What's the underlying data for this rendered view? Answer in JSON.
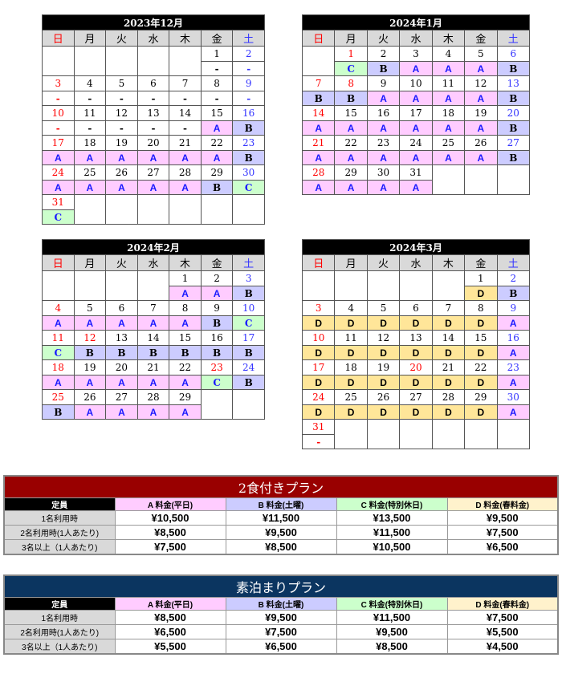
{
  "weekday_labels": [
    "日",
    "月",
    "火",
    "水",
    "木",
    "金",
    "土"
  ],
  "rate_colors": {
    "A": "#ffccff",
    "B": "#ccccff",
    "C": "#ccffcc",
    "D": "#ffe699",
    "-": "#ffffff"
  },
  "date_colors": {
    "sunday": "#ff0000",
    "saturday": "#3333ff",
    "weekday": "#000000",
    "holiday": "#ff0000"
  },
  "calendars": [
    {
      "title": "2023年12月",
      "holidays": [],
      "weeks": [
        [
          null,
          null,
          null,
          null,
          null,
          [
            1,
            "-"
          ],
          [
            2,
            "-"
          ]
        ],
        [
          [
            3,
            "-"
          ],
          [
            4,
            "-"
          ],
          [
            5,
            "-"
          ],
          [
            6,
            "-"
          ],
          [
            7,
            "-"
          ],
          [
            8,
            "-"
          ],
          [
            9,
            "-"
          ]
        ],
        [
          [
            10,
            "-"
          ],
          [
            11,
            "-"
          ],
          [
            12,
            "-"
          ],
          [
            13,
            "-"
          ],
          [
            14,
            "-"
          ],
          [
            15,
            "A"
          ],
          [
            16,
            "B"
          ]
        ],
        [
          [
            17,
            "A"
          ],
          [
            18,
            "A"
          ],
          [
            19,
            "A"
          ],
          [
            20,
            "A"
          ],
          [
            21,
            "A"
          ],
          [
            22,
            "A"
          ],
          [
            23,
            "B"
          ]
        ],
        [
          [
            24,
            "A"
          ],
          [
            25,
            "A"
          ],
          [
            26,
            "A"
          ],
          [
            27,
            "A"
          ],
          [
            28,
            "A"
          ],
          [
            29,
            "B"
          ],
          [
            30,
            "C"
          ]
        ],
        [
          [
            31,
            "C"
          ],
          null,
          null,
          null,
          null,
          null,
          null
        ]
      ]
    },
    {
      "title": "2024年1月",
      "holidays": [
        1,
        8
      ],
      "weeks": [
        [
          null,
          [
            1,
            "C"
          ],
          [
            2,
            "B"
          ],
          [
            3,
            "A"
          ],
          [
            4,
            "A"
          ],
          [
            5,
            "A"
          ],
          [
            6,
            "B"
          ]
        ],
        [
          [
            7,
            "B"
          ],
          [
            8,
            "B"
          ],
          [
            9,
            "A"
          ],
          [
            10,
            "A"
          ],
          [
            11,
            "A"
          ],
          [
            12,
            "A"
          ],
          [
            13,
            "B"
          ]
        ],
        [
          [
            14,
            "A"
          ],
          [
            15,
            "A"
          ],
          [
            16,
            "A"
          ],
          [
            17,
            "A"
          ],
          [
            18,
            "A"
          ],
          [
            19,
            "A"
          ],
          [
            20,
            "B"
          ]
        ],
        [
          [
            21,
            "A"
          ],
          [
            22,
            "A"
          ],
          [
            23,
            "A"
          ],
          [
            24,
            "A"
          ],
          [
            25,
            "A"
          ],
          [
            26,
            "A"
          ],
          [
            27,
            "B"
          ]
        ],
        [
          [
            28,
            "A"
          ],
          [
            29,
            "A"
          ],
          [
            30,
            "A"
          ],
          [
            31,
            "A"
          ],
          null,
          null,
          null
        ]
      ]
    },
    {
      "title": "2024年2月",
      "holidays": [
        12,
        23
      ],
      "weeks": [
        [
          null,
          null,
          null,
          null,
          [
            1,
            "A"
          ],
          [
            2,
            "A"
          ],
          [
            3,
            "B"
          ]
        ],
        [
          [
            4,
            "A"
          ],
          [
            5,
            "A"
          ],
          [
            6,
            "A"
          ],
          [
            7,
            "A"
          ],
          [
            8,
            "A"
          ],
          [
            9,
            "B"
          ],
          [
            10,
            "C"
          ]
        ],
        [
          [
            11,
            "C"
          ],
          [
            12,
            "B"
          ],
          [
            13,
            "B"
          ],
          [
            14,
            "B"
          ],
          [
            15,
            "B"
          ],
          [
            16,
            "B"
          ],
          [
            17,
            "B"
          ]
        ],
        [
          [
            18,
            "A"
          ],
          [
            19,
            "A"
          ],
          [
            20,
            "A"
          ],
          [
            21,
            "A"
          ],
          [
            22,
            "A"
          ],
          [
            23,
            "C"
          ],
          [
            24,
            "B"
          ]
        ],
        [
          [
            25,
            "B"
          ],
          [
            26,
            "A"
          ],
          [
            27,
            "A"
          ],
          [
            28,
            "A"
          ],
          [
            29,
            "A"
          ],
          null,
          null
        ]
      ]
    },
    {
      "title": "2024年3月",
      "holidays": [
        20
      ],
      "weeks": [
        [
          null,
          null,
          null,
          null,
          null,
          [
            1,
            "D"
          ],
          [
            2,
            "B"
          ]
        ],
        [
          [
            3,
            "D"
          ],
          [
            4,
            "D"
          ],
          [
            5,
            "D"
          ],
          [
            6,
            "D"
          ],
          [
            7,
            "D"
          ],
          [
            8,
            "D"
          ],
          [
            9,
            "A"
          ]
        ],
        [
          [
            10,
            "D"
          ],
          [
            11,
            "D"
          ],
          [
            12,
            "D"
          ],
          [
            13,
            "D"
          ],
          [
            14,
            "D"
          ],
          [
            15,
            "D"
          ],
          [
            16,
            "A"
          ]
        ],
        [
          [
            17,
            "D"
          ],
          [
            18,
            "D"
          ],
          [
            19,
            "D"
          ],
          [
            20,
            "D"
          ],
          [
            21,
            "D"
          ],
          [
            22,
            "D"
          ],
          [
            23,
            "A"
          ]
        ],
        [
          [
            24,
            "D"
          ],
          [
            25,
            "D"
          ],
          [
            26,
            "D"
          ],
          [
            27,
            "D"
          ],
          [
            28,
            "D"
          ],
          [
            29,
            "D"
          ],
          [
            30,
            "A"
          ]
        ],
        [
          [
            31,
            "-"
          ],
          null,
          null,
          null,
          null,
          null,
          null
        ]
      ]
    }
  ],
  "plan_headers": [
    "定員",
    "A 料金(平日)",
    "B 料金(土曜)",
    "C 料金(特別休日)",
    "D 料金(春料金)"
  ],
  "plan_header_colors": [
    "#000000",
    "#ffccff",
    "#ccccff",
    "#ccffcc",
    "#fff2cc"
  ],
  "plans": [
    {
      "title": "2食付きプラン",
      "color": "#990000",
      "rows": [
        {
          "label": "1名利用時",
          "values": [
            "¥10,500",
            "¥11,500",
            "¥13,500",
            "¥9,500"
          ]
        },
        {
          "label": "2名利用時(1人あたり)",
          "values": [
            "¥8,500",
            "¥9,500",
            "¥11,500",
            "¥7,500"
          ]
        },
        {
          "label": "3名以上（1人あたり)",
          "values": [
            "¥7,500",
            "¥8,500",
            "¥10,500",
            "¥6,500"
          ]
        }
      ]
    },
    {
      "title": "素泊まりプラン",
      "color": "#0b3560",
      "rows": [
        {
          "label": "1名利用時",
          "values": [
            "¥8,500",
            "¥9,500",
            "¥11,500",
            "¥7,500"
          ]
        },
        {
          "label": "2名利用時(1人あたり)",
          "values": [
            "¥6,500",
            "¥7,500",
            "¥9,500",
            "¥5,500"
          ]
        },
        {
          "label": "3名以上（1人あたり)",
          "values": [
            "¥5,500",
            "¥6,500",
            "¥8,500",
            "¥4,500"
          ]
        }
      ]
    }
  ]
}
